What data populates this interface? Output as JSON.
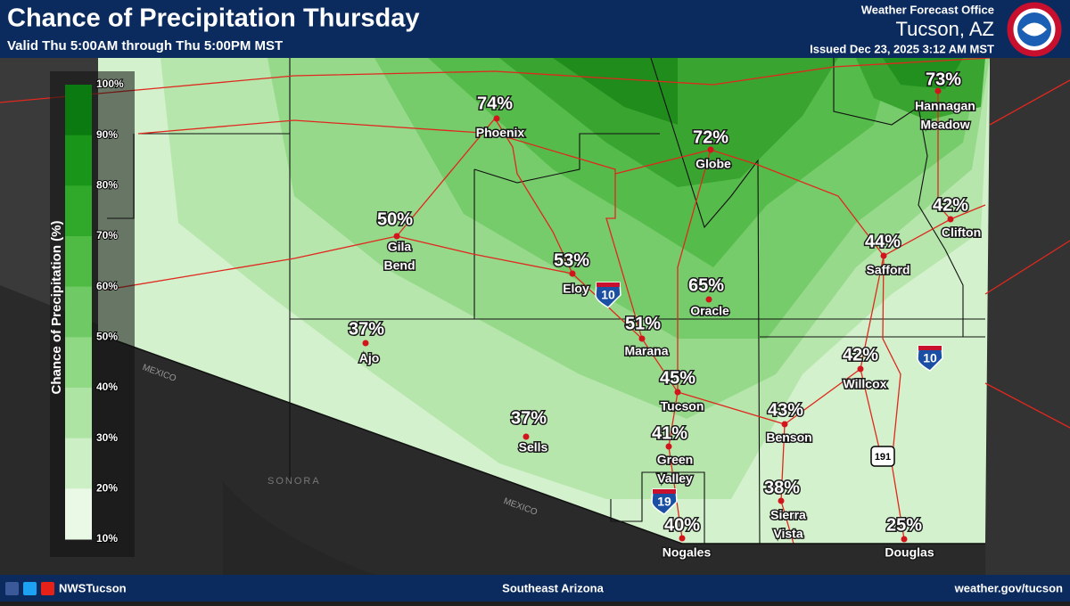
{
  "header": {
    "title": "Chance of Precipitation Thursday",
    "subtitle": "Valid Thu 5:00AM through Thu 5:00PM MST",
    "office": "Weather Forecast Office",
    "location": "Tucson, AZ",
    "issued": "Issued Dec 23, 2025 3:12 AM MST"
  },
  "legend": {
    "title": "Chance of Precipitation (%)",
    "ticks": [
      "100%",
      "90%",
      "80%",
      "70%",
      "60%",
      "50%",
      "40%",
      "30%",
      "20%",
      "10%"
    ]
  },
  "cities": [
    {
      "pct": "74%",
      "name": [
        "Phoenix"
      ]
    },
    {
      "pct": "72%",
      "name": [
        "Globe"
      ]
    },
    {
      "pct": "73%",
      "name": [
        "Hannagan",
        "Meadow"
      ]
    },
    {
      "pct": "50%",
      "name": [
        "Gila",
        "Bend"
      ]
    },
    {
      "pct": "53%",
      "name": [
        "Eloy"
      ]
    },
    {
      "pct": "65%",
      "name": [
        "Oracle"
      ]
    },
    {
      "pct": "51%",
      "name": [
        "Marana"
      ]
    },
    {
      "pct": "45%",
      "name": [
        "Tucson"
      ]
    },
    {
      "pct": "37%",
      "name": [
        "Ajo"
      ]
    },
    {
      "pct": "37%",
      "name": [
        "Sells"
      ]
    },
    {
      "pct": "41%",
      "name": [
        "Green",
        "Valley"
      ]
    },
    {
      "pct": "40%",
      "name": [
        "Nogales"
      ]
    },
    {
      "pct": "38%",
      "name": [
        "Sierra",
        "Vista"
      ]
    },
    {
      "pct": "43%",
      "name": [
        "Benson"
      ]
    },
    {
      "pct": "42%",
      "name": [
        "Willcox"
      ]
    },
    {
      "pct": "44%",
      "name": [
        "Safford"
      ]
    },
    {
      "pct": "42%",
      "name": [
        "Clifton"
      ]
    },
    {
      "pct": "25%",
      "name": [
        "Douglas"
      ]
    }
  ],
  "map_labels": {
    "mexico_1": "MEXICO",
    "sonora": "SONORA",
    "mexico_2": "MEXICO"
  },
  "shields": {
    "i10_west": "10",
    "i10_east": "10",
    "i19": "19",
    "us191": "191"
  },
  "footer": {
    "handle": "NWSTucson",
    "region": "Southeast Arizona",
    "url": "weather.gov/tucson"
  }
}
